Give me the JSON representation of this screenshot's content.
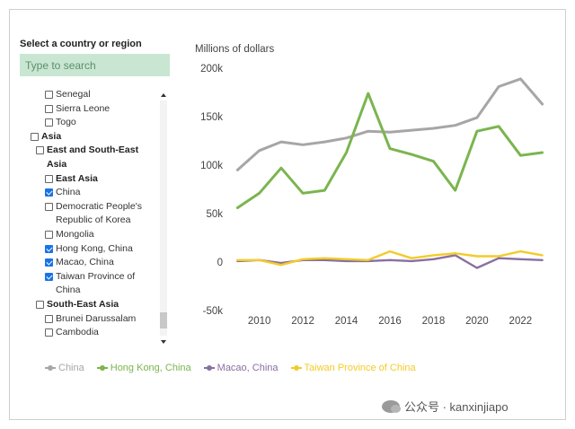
{
  "filter": {
    "title": "Select a country or region",
    "search_placeholder": "Type to search",
    "items": [
      {
        "label": "Senegal",
        "level": 2,
        "checked": false,
        "bold": false
      },
      {
        "label": "Sierra Leone",
        "level": 2,
        "checked": false,
        "bold": false
      },
      {
        "label": "Togo",
        "level": 2,
        "checked": false,
        "bold": false
      },
      {
        "label": "Asia",
        "level": 0,
        "checked": false,
        "bold": true
      },
      {
        "label": "East and South-East Asia",
        "level": 1,
        "checked": false,
        "bold": true
      },
      {
        "label": "East Asia",
        "level": 2,
        "checked": false,
        "bold": true
      },
      {
        "label": "China",
        "level": 2,
        "checked": true,
        "bold": false
      },
      {
        "label": "Democratic People's Republic of Korea",
        "level": 2,
        "checked": false,
        "bold": false
      },
      {
        "label": "Mongolia",
        "level": 2,
        "checked": false,
        "bold": false
      },
      {
        "label": "Hong Kong, China",
        "level": 2,
        "checked": true,
        "bold": false
      },
      {
        "label": "Macao, China",
        "level": 2,
        "checked": true,
        "bold": false
      },
      {
        "label": "Taiwan Province of China",
        "level": 2,
        "checked": true,
        "bold": false
      },
      {
        "label": "South-East Asia",
        "level": 1,
        "checked": false,
        "bold": true
      },
      {
        "label": "Brunei Darussalam",
        "level": 2,
        "checked": false,
        "bold": false
      },
      {
        "label": "Cambodia",
        "level": 2,
        "checked": false,
        "bold": false
      }
    ]
  },
  "chart_data": {
    "type": "line",
    "title": "",
    "ylabel": "Millions of dollars",
    "xlabel": "",
    "ylim": [
      -50000,
      200000
    ],
    "xlim": [
      2008.9,
      2023.1
    ],
    "x_ticks": [
      2010,
      2012,
      2014,
      2016,
      2018,
      2020,
      2022
    ],
    "x_tick_labels": [
      "2010",
      "2012",
      "2014",
      "2016",
      "2018",
      "2020",
      "2022"
    ],
    "y_ticks": [
      -50000,
      0,
      50000,
      100000,
      150000,
      200000
    ],
    "y_tick_labels": [
      "-50k",
      "0",
      "50k",
      "100k",
      "150k",
      "200k"
    ],
    "grid": false,
    "legend_position": "bottom-left",
    "x": [
      2009,
      2010,
      2011,
      2012,
      2013,
      2014,
      2015,
      2016,
      2017,
      2018,
      2019,
      2020,
      2021,
      2022,
      2023
    ],
    "series": [
      {
        "name": "China",
        "color": "#a8a5a7",
        "values": [
          95000,
          115000,
          124000,
          121000,
          124000,
          128000,
          135000,
          134000,
          136000,
          138000,
          141000,
          149000,
          181000,
          189000,
          163000
        ]
      },
      {
        "name": "Hong Kong, China",
        "color": "#7ab54e",
        "values": [
          56000,
          71000,
          97000,
          71000,
          74000,
          113000,
          174000,
          117000,
          111000,
          104000,
          74000,
          135000,
          140000,
          110000,
          113000
        ]
      },
      {
        "name": "Macao, China",
        "color": "#8a6fa0",
        "values": [
          1000,
          2000,
          -1000,
          2000,
          2000,
          1000,
          1000,
          2000,
          1000,
          3000,
          7000,
          -6000,
          4000,
          3000,
          2000
        ]
      },
      {
        "name": "Taiwan Province of China",
        "color": "#f2cc28",
        "values": [
          2000,
          2000,
          -3000,
          3000,
          4000,
          3000,
          2000,
          11000,
          4000,
          7000,
          9000,
          6000,
          6000,
          11000,
          7000
        ]
      }
    ]
  },
  "watermark": {
    "text": "公众号 · kanxinjiapo"
  }
}
